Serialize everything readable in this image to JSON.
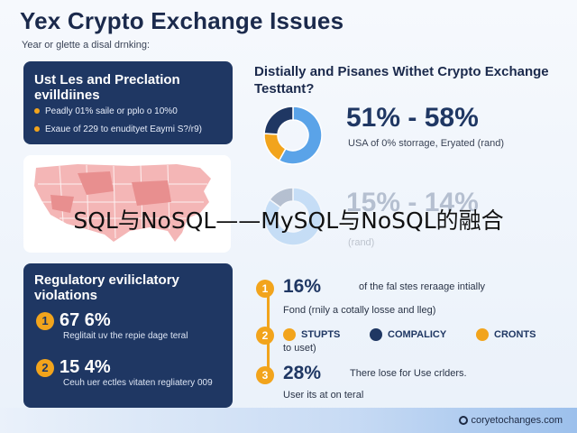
{
  "header": {
    "title": "Yex Crypto Exchange Issues",
    "subtitle": "Year or glette a disal drnking:"
  },
  "left_top_card": {
    "heading": "Ust Les and Preclation evilldiines",
    "bullets": [
      "Peadly 01% saile or pplo o 10%0",
      "Exaue of 229 to enudityet Eaymi S?/r9)"
    ]
  },
  "left_bottom_card": {
    "heading": "Regulatory eviliclatory violations",
    "stats": [
      {
        "badge": "1",
        "value": "67 6%",
        "text": "Reglitait uv the repie dage teral"
      },
      {
        "badge": "2",
        "value": "15 4%",
        "text": "Ceuh uer ectles vitaten regliatery 009"
      }
    ]
  },
  "right_top": {
    "heading": "Distially and Pisanes Withet Crypto Exchange Testtant?",
    "stat1": {
      "value": "51%  -  58%",
      "text": "USA of 0% storrage, Eryated (rand)"
    },
    "stat2": {
      "value": "15%  -  14%",
      "text": "(rand)"
    }
  },
  "banner": {
    "text": "SQL与NoSQL——MySQL与NoSQL的融合"
  },
  "right_list": {
    "items": [
      {
        "badge": "1",
        "value": "16%",
        "text": "of the fal stes reraage intially",
        "sub": "Fond (rnily a cotally losse and lleg)"
      },
      {
        "badge": "3",
        "value": "28%",
        "text": "There lose for Use crlders.",
        "sub": "User its at on teral"
      }
    ],
    "legend": {
      "badge": "2",
      "items": [
        {
          "label": "STUPTS",
          "color": "#f2a41c"
        },
        {
          "label": "COMPALICY",
          "color": "#1f3763"
        },
        {
          "label": "CRONTS",
          "color": "#f2a41c"
        }
      ],
      "sub": "to uset)"
    }
  },
  "footer": {
    "text": "coryetochanges.com"
  },
  "colors": {
    "navy": "#1f3763",
    "orange": "#f2a41c",
    "blue": "#5aa3e8"
  },
  "donut1": {
    "segments": [
      0.58,
      0.18,
      0.24
    ]
  },
  "donut2": {
    "segments": [
      0.85,
      0.15
    ]
  }
}
